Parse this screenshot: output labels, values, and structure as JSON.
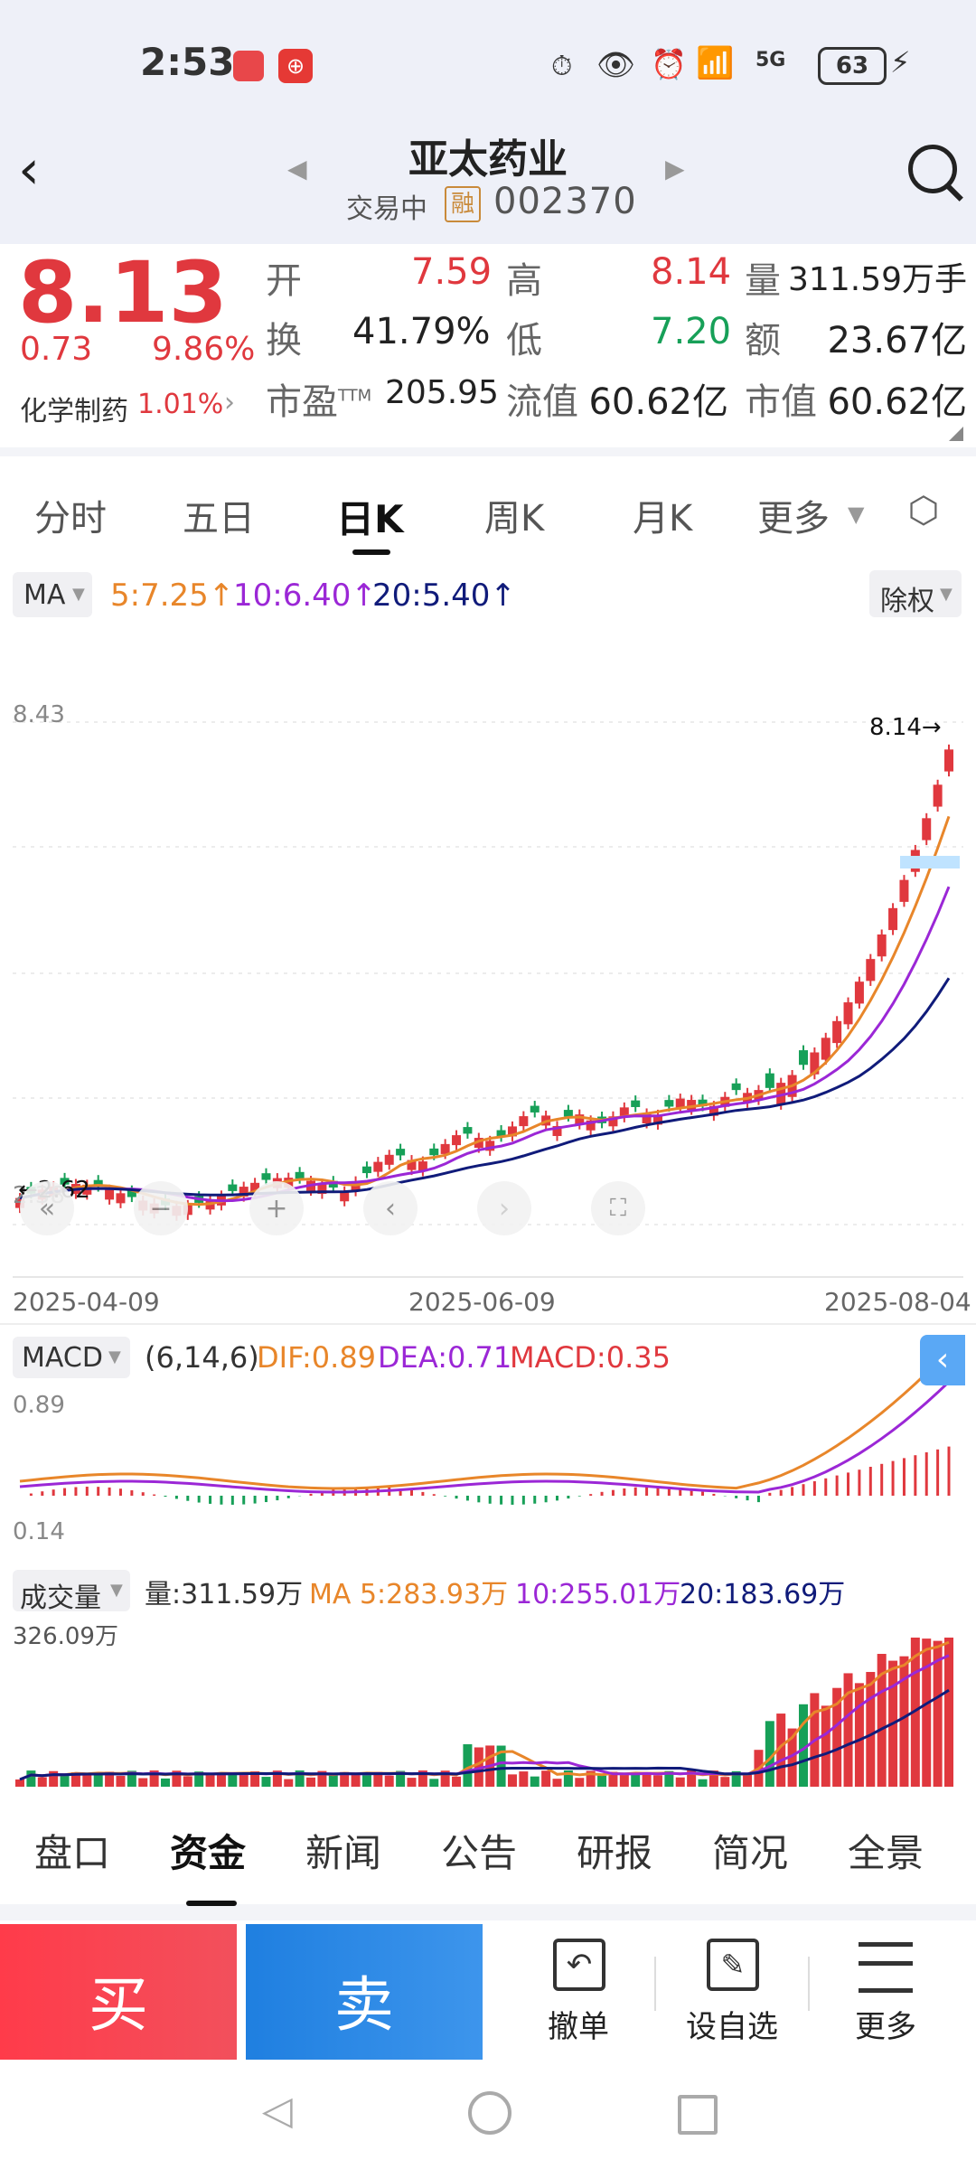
{
  "status": {
    "time": "2:53",
    "network": "5G",
    "battery": "63"
  },
  "header": {
    "stock_name": "亚太药业",
    "trade_status": "交易中",
    "margin_badge": "融",
    "code": "002370"
  },
  "quote": {
    "price": "8.13",
    "change": "0.73",
    "change_pct": "9.86%",
    "sector": "化学制药",
    "sector_pct": "1.01%",
    "open_label": "开",
    "open": "7.59",
    "high_label": "高",
    "high": "8.14",
    "vol_label": "量",
    "vol": "311.59万手",
    "turnover_label": "换",
    "turnover": "41.79%",
    "low_label": "低",
    "low": "7.20",
    "amount_label": "额",
    "amount": "23.67亿",
    "pe_label": "市盈TTM",
    "pe": "205.95",
    "float_label": "流值",
    "float": "60.62亿",
    "mcap_label": "市值",
    "mcap": "60.62亿"
  },
  "tabs": [
    "分时",
    "五日",
    "日K",
    "周K",
    "月K",
    "更多"
  ],
  "active_tab": 2,
  "ma_bar": {
    "label": "MA",
    "ma5": "5:7.25",
    "ma10": "10:6.40",
    "ma20": "20:5.40",
    "adjust": "除权"
  },
  "kline": {
    "y_max": "8.43",
    "y_min": "2.38",
    "high_mark": "8.14",
    "low_mark": "2.62",
    "dates": [
      "2025-04-09",
      "2025-06-09",
      "2025-08-04"
    ]
  },
  "macd": {
    "label": "MACD",
    "params": "(6,14,6)",
    "dif": "DIF:0.89",
    "dea": "DEA:0.71",
    "macd": "MACD:0.35",
    "y_max": "0.89",
    "y_min": "0.14"
  },
  "volume": {
    "label": "成交量",
    "vol": "量:311.59万",
    "ma5": "MA 5:283.93万",
    "ma10": "10:255.01万",
    "ma20": "20:183.69万",
    "y_max": "326.09万"
  },
  "bottom_tabs": [
    "盘口",
    "资金",
    "新闻",
    "公告",
    "研报",
    "简况",
    "全景"
  ],
  "active_bottom": 1,
  "actions": {
    "buy": "买",
    "sell": "卖",
    "cancel": "撤单",
    "watch": "设自选",
    "more": "更多"
  },
  "colors": {
    "up": "#e0383e",
    "down": "#17a058",
    "ma5": "#e8862a",
    "ma10": "#9b27d6",
    "ma20": "#101b7a",
    "buy_bg": "#f14350",
    "sell_bg": "#1f7fe0"
  }
}
